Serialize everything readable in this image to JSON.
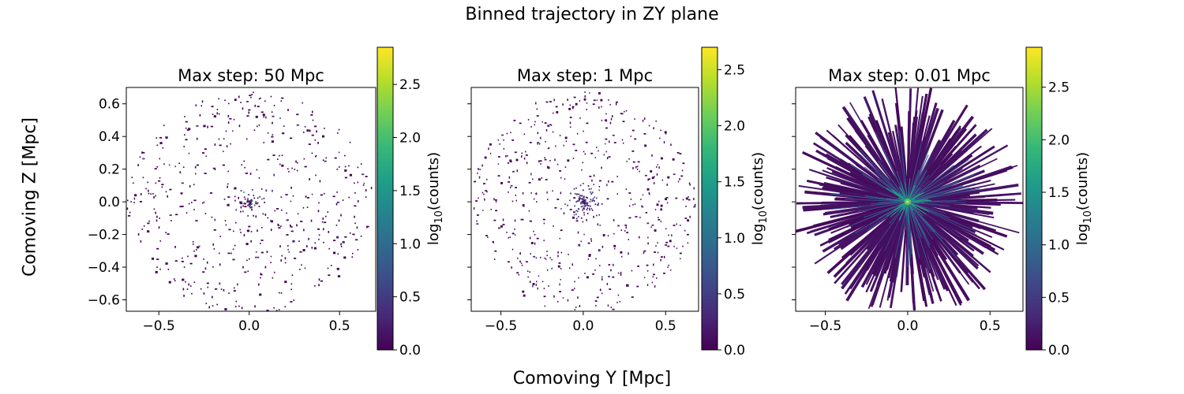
{
  "figure": {
    "suptitle": "Binned trajectory in ZY plane",
    "xlabel": "Comoving Y [Mpc]",
    "ylabel": "Comoving Z [Mpc]"
  },
  "colors": {
    "viridis": [
      "#440154",
      "#482878",
      "#3e4989",
      "#31688e",
      "#26828e",
      "#1f9e89",
      "#35b779",
      "#6ece58",
      "#b5de2b",
      "#fde725"
    ]
  },
  "chart_data": [
    {
      "type": "heatmap",
      "title": "Max step: 50 Mpc",
      "xlim": [
        -0.68,
        0.7
      ],
      "ylim": [
        -0.67,
        0.7
      ],
      "xticks": [
        "−0.5",
        "0.0",
        "0.5"
      ],
      "yticks": [
        "−0.6",
        "−0.4",
        "−0.2",
        "0.0",
        "0.2",
        "0.4",
        "0.6"
      ],
      "colorbar": {
        "label_main": "log",
        "label_sub": "10",
        "label_rest": "(counts)",
        "range": [
          0,
          2.85
        ],
        "ticks": [
          "0.0",
          "0.5",
          "1.0",
          "1.5",
          "2.0",
          "2.5"
        ]
      },
      "pattern": "sparse-dots",
      "disk_radius": 0.68,
      "description": "scattered single counts within radius ~0.68, central concentration near origin"
    },
    {
      "type": "heatmap",
      "title": "Max step: 1 Mpc",
      "xlim": [
        -0.68,
        0.7
      ],
      "ylim": [
        -0.67,
        0.7
      ],
      "xticks": [
        "−0.5",
        "0.0",
        "0.5"
      ],
      "yticks": [],
      "colorbar": {
        "label_main": "log",
        "label_sub": "10",
        "label_rest": "(counts)",
        "range": [
          0,
          2.7
        ],
        "ticks": [
          "0.0",
          "0.5",
          "1.0",
          "1.5",
          "2.0",
          "2.5"
        ]
      },
      "pattern": "sparse-dots",
      "disk_radius": 0.68,
      "description": "scattered counts, slightly denser near origin"
    },
    {
      "type": "heatmap",
      "title": "Max step: 0.01 Mpc",
      "xlim": [
        -0.68,
        0.7
      ],
      "ylim": [
        -0.67,
        0.7
      ],
      "xticks": [
        "−0.5",
        "0.0",
        "0.5"
      ],
      "yticks": [],
      "colorbar": {
        "label_main": "log",
        "label_sub": "10",
        "label_rest": "(counts)",
        "range": [
          0,
          2.88
        ],
        "ticks": [
          "0.0",
          "0.5",
          "1.0",
          "1.5",
          "2.0",
          "2.5"
        ]
      },
      "pattern": "radial-rays",
      "disk_radius": 0.68,
      "description": "dense radial rays from origin with highest counts at center"
    }
  ]
}
